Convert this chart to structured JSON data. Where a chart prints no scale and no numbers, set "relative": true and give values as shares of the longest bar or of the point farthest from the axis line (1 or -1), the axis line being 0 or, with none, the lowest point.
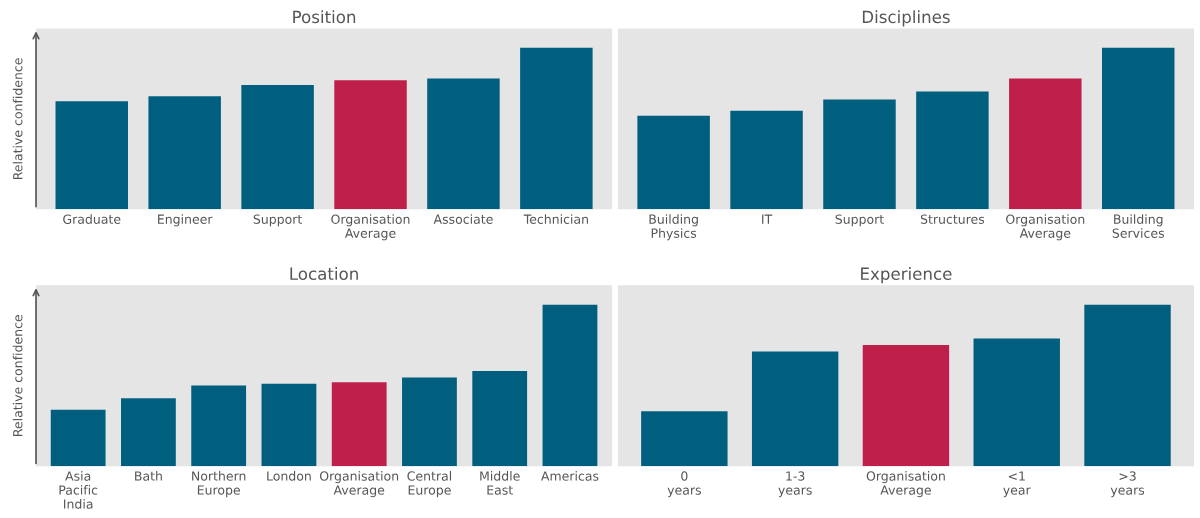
{
  "chart_data": [
    {
      "type": "bar",
      "title": "Position",
      "ylabel": "Relative confidence",
      "relative": true,
      "tick_labels": "x",
      "grid": false,
      "legend": false,
      "categories": [
        "Graduate",
        "Engineer",
        "Support",
        "Organisation\nAverage",
        "Associate",
        "Technician"
      ],
      "values": [
        0.67,
        0.7,
        0.77,
        0.8,
        0.81,
        1.0
      ],
      "colors": [
        "#005f7f",
        "#005f7f",
        "#005f7f",
        "#bf1f4b",
        "#005f7f",
        "#005f7f"
      ]
    },
    {
      "type": "bar",
      "title": "Disciplines",
      "relative": true,
      "tick_labels": "x",
      "grid": false,
      "legend": false,
      "categories": [
        "Building\nPhysics",
        "IT",
        "Support",
        "Structures",
        "Organisation\nAverage",
        "Building\nServices"
      ],
      "values": [
        0.58,
        0.61,
        0.68,
        0.73,
        0.81,
        1.0
      ],
      "colors": [
        "#005f7f",
        "#005f7f",
        "#005f7f",
        "#005f7f",
        "#bf1f4b",
        "#005f7f"
      ]
    },
    {
      "type": "bar",
      "title": "Location",
      "ylabel": "Relative confidence",
      "relative": true,
      "tick_labels": "x",
      "grid": false,
      "legend": false,
      "categories": [
        "Asia\nPacific\nIndia",
        "Bath",
        "Northern\nEurope",
        "London",
        "Organisation\nAverage",
        "Central\nEurope",
        "Middle\nEast",
        "Americas"
      ],
      "values": [
        0.35,
        0.42,
        0.5,
        0.51,
        0.52,
        0.55,
        0.59,
        1.0
      ],
      "colors": [
        "#005f7f",
        "#005f7f",
        "#005f7f",
        "#005f7f",
        "#bf1f4b",
        "#005f7f",
        "#005f7f",
        "#005f7f"
      ]
    },
    {
      "type": "bar",
      "title": "Experience",
      "relative": true,
      "tick_labels": "x",
      "grid": false,
      "legend": false,
      "categories": [
        "0\nyears",
        "1-3\nyears",
        "Organisation\nAverage",
        "<1\nyear",
        ">3\nyears"
      ],
      "values": [
        0.34,
        0.71,
        0.75,
        0.79,
        1.0
      ],
      "colors": [
        "#005f7f",
        "#005f7f",
        "#bf1f4b",
        "#005f7f",
        "#005f7f"
      ]
    }
  ]
}
